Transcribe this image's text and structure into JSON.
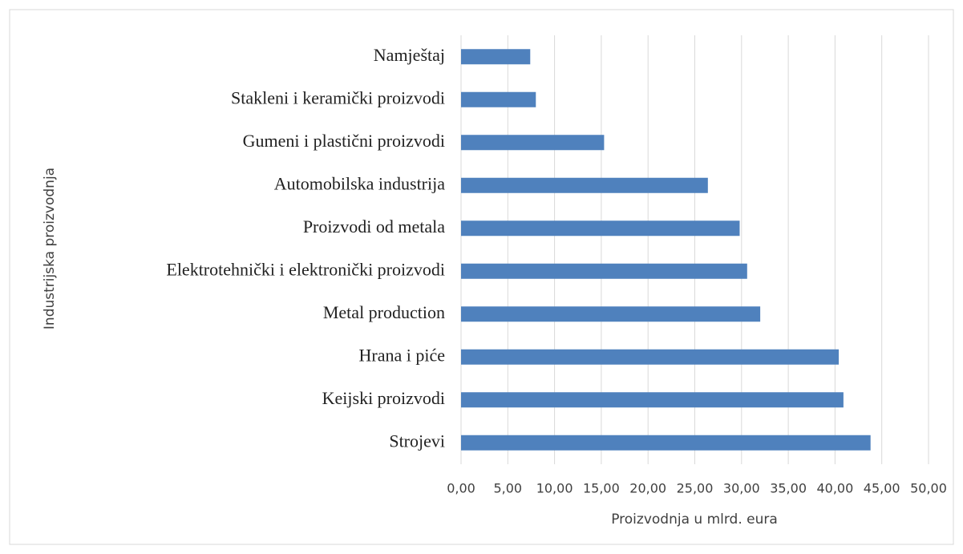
{
  "chart_data": {
    "type": "bar",
    "orientation": "horizontal",
    "categories": [
      "Namještaj",
      "Stakleni i keramički proizvodi",
      "Gumeni i plastični proizvodi",
      "Automobilska industrija",
      "Proizvodi od metala",
      "Elektrotehnički i elektronički proizvodi",
      "Metal production",
      "Hrana i piće",
      "Keijski proizvodi",
      "Strojevi"
    ],
    "values": [
      7.4,
      8.0,
      15.3,
      26.4,
      29.8,
      30.6,
      32.0,
      40.4,
      40.9,
      43.8
    ],
    "color": "#4f81bd",
    "xlabel": "Proizvodnja u mlrd. eura",
    "ylabel": "Industrijska proizvodnja",
    "xlim": [
      0,
      50
    ],
    "xticks": [
      {
        "value": 0,
        "label": "0,00"
      },
      {
        "value": 5,
        "label": "5,00"
      },
      {
        "value": 10,
        "label": "10,00"
      },
      {
        "value": 15,
        "label": "15,00"
      },
      {
        "value": 20,
        "label": "20,00"
      },
      {
        "value": 25,
        "label": "25,00"
      },
      {
        "value": 30,
        "label": "30,00"
      },
      {
        "value": 35,
        "label": "35,00"
      },
      {
        "value": 40,
        "label": "40,00"
      },
      {
        "value": 45,
        "label": "45,00"
      },
      {
        "value": 50,
        "label": "50,00"
      }
    ],
    "grid": true
  }
}
